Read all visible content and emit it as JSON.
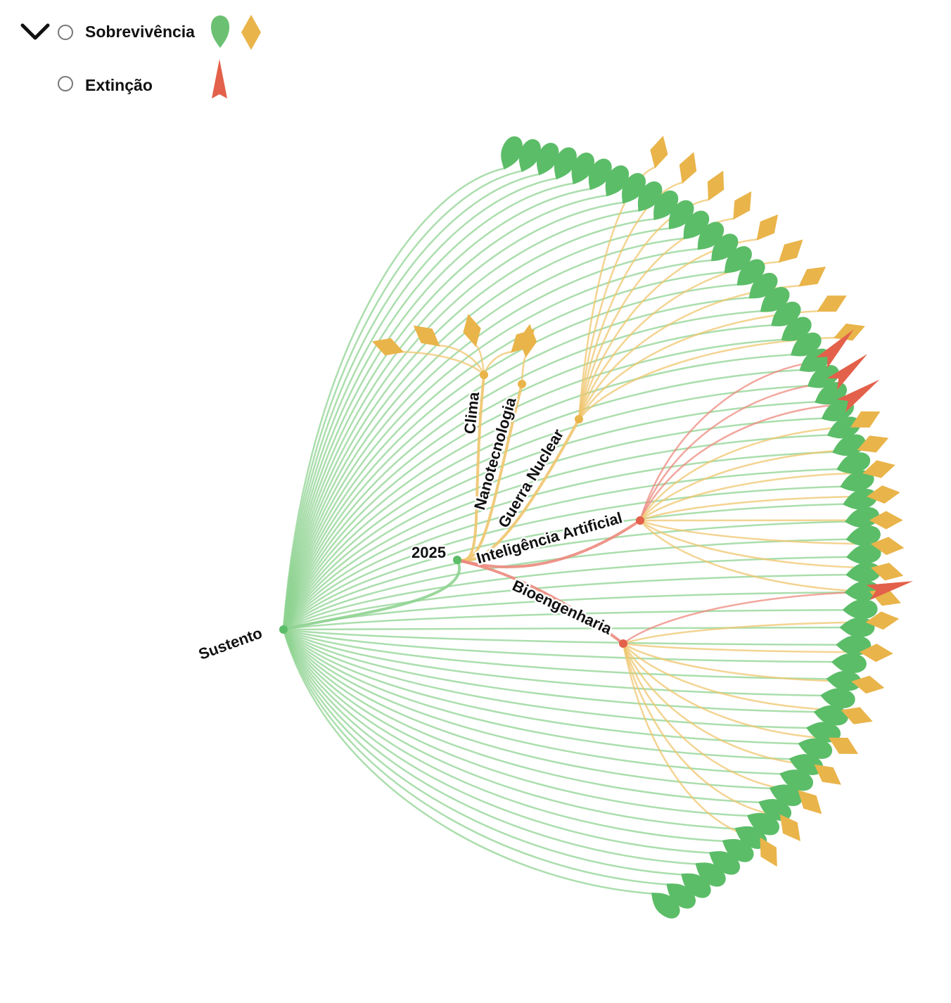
{
  "legend": {
    "survival_label": "Sobrevivência",
    "extinction_label": "Extinção"
  },
  "colors": {
    "green": "#5cbd68",
    "green_link": "#8fd391",
    "orange": "#e9b44a",
    "orange_link": "#efc56e",
    "red": "#e3604a",
    "red_link": "#ec8a7d"
  },
  "tree": {
    "root": {
      "label": "2025"
    },
    "branches": [
      {
        "label": "Sustento",
        "survival": 56,
        "extinction": 0,
        "leaf": "green"
      },
      {
        "label": "Clima",
        "survival": 4,
        "extinction": 0,
        "leaf": "orange"
      },
      {
        "label": "Nanotecnologia",
        "survival": 1,
        "extinction": 0,
        "leaf": "orange"
      },
      {
        "label": "Guerra Nuclear",
        "survival": 9,
        "extinction": 0,
        "leaf": "orange"
      },
      {
        "label": "Inteligência Artificial",
        "survival": 8,
        "extinction": 3,
        "leaf": "orange"
      },
      {
        "label": "Bioengenharia",
        "survival": 9,
        "extinction": 1,
        "leaf": "orange"
      }
    ]
  }
}
